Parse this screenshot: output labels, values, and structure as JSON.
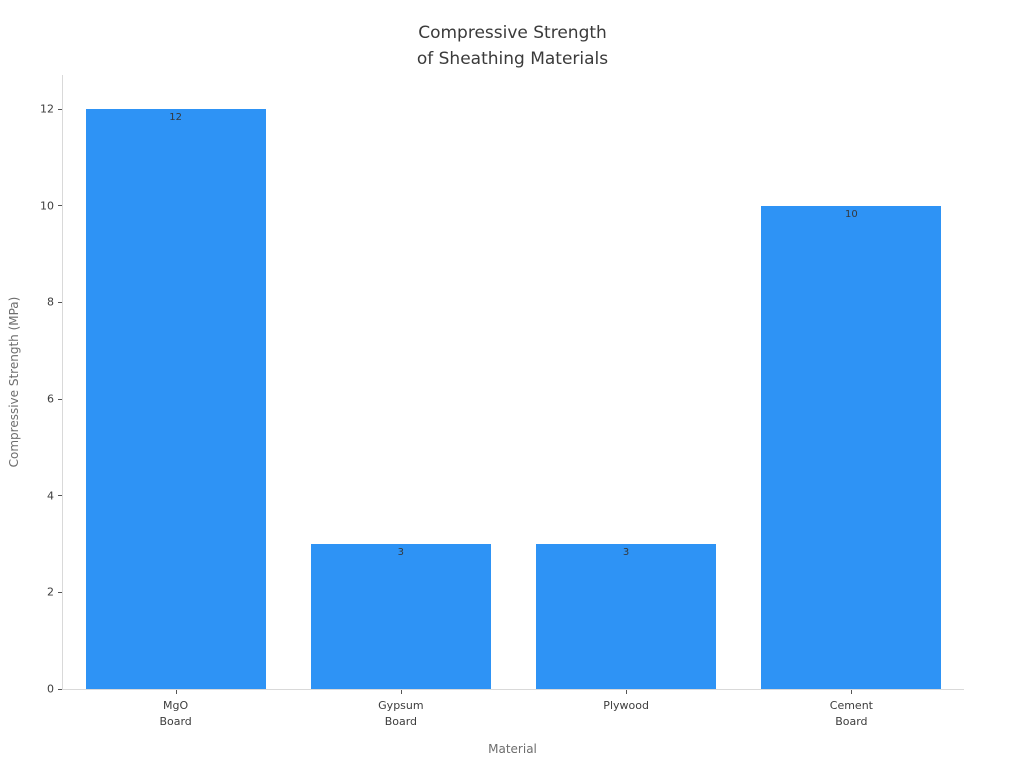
{
  "chart_data": {
    "type": "bar",
    "title": "Compressive Strength\nof Sheathing Materials",
    "xlabel": "Material",
    "ylabel": "Compressive Strength (MPa)",
    "categories": [
      "MgO\nBoard",
      "Gypsum\nBoard",
      "Plywood",
      "Cement\nBoard"
    ],
    "values": [
      12,
      3,
      3,
      10
    ],
    "bar_labels": [
      "12",
      "3",
      "3",
      "10"
    ],
    "yticks": [
      0,
      2,
      4,
      6,
      8,
      10,
      12
    ],
    "ylim": [
      0,
      12.7
    ],
    "bar_width_fraction": 0.8,
    "grid": false,
    "legend": "none",
    "colors": {
      "bar": "#2e93f5",
      "title": "#3a3a3a",
      "tick_label": "#3d3d3d",
      "axis_title": "#6e6e6e",
      "spine": "#d9d9d9",
      "tick_mark": "#555555",
      "value_label": "#35383c",
      "background": "#ffffff"
    }
  }
}
